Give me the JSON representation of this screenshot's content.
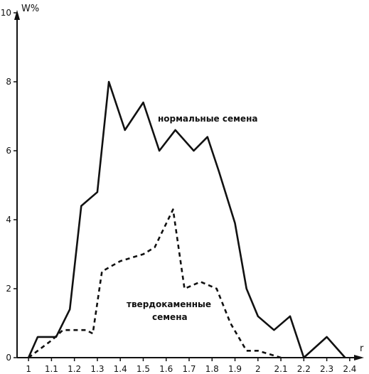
{
  "chart_data": {
    "type": "line",
    "xlabel": "r",
    "ylabel": "W%",
    "xlim": [
      0.95,
      2.45
    ],
    "ylim": [
      0,
      10
    ],
    "x_ticks": [
      "1",
      "1.1",
      "1.2",
      "1.3",
      "1.4",
      "1.5",
      "1.6",
      "1.7",
      "1.8",
      "1.9",
      "2",
      "2.1",
      "2.2",
      "2.3",
      "2.4"
    ],
    "y_ticks": [
      "0",
      "2",
      "4",
      "6",
      "8",
      "10"
    ],
    "grid": false,
    "legend": "none",
    "series": [
      {
        "name": "нормальные семена",
        "style": "solid",
        "color": "#111111",
        "x": [
          1.0,
          1.04,
          1.12,
          1.18,
          1.23,
          1.3,
          1.35,
          1.42,
          1.5,
          1.57,
          1.64,
          1.72,
          1.78,
          1.83,
          1.9,
          1.95,
          2.0,
          2.07,
          2.14,
          2.2,
          2.3,
          2.38
        ],
        "y": [
          0,
          0.6,
          0.6,
          1.4,
          4.4,
          4.8,
          8.0,
          6.6,
          7.4,
          6.0,
          6.6,
          6.0,
          6.4,
          5.4,
          3.9,
          2.0,
          1.2,
          0.8,
          1.2,
          0,
          0.6,
          0
        ]
      },
      {
        "name": "твердокаменные семена",
        "style": "dashed",
        "color": "#111111",
        "x": [
          1.0,
          1.1,
          1.15,
          1.2,
          1.25,
          1.28,
          1.32,
          1.4,
          1.5,
          1.55,
          1.63,
          1.68,
          1.75,
          1.82,
          1.88,
          1.95,
          2.0,
          2.05,
          2.1
        ],
        "y": [
          0,
          0.5,
          0.8,
          0.8,
          0.8,
          0.7,
          2.5,
          2.8,
          3.0,
          3.2,
          4.3,
          2.0,
          2.2,
          2.0,
          1.0,
          0.2,
          0.2,
          0.1,
          0
        ]
      }
    ]
  }
}
